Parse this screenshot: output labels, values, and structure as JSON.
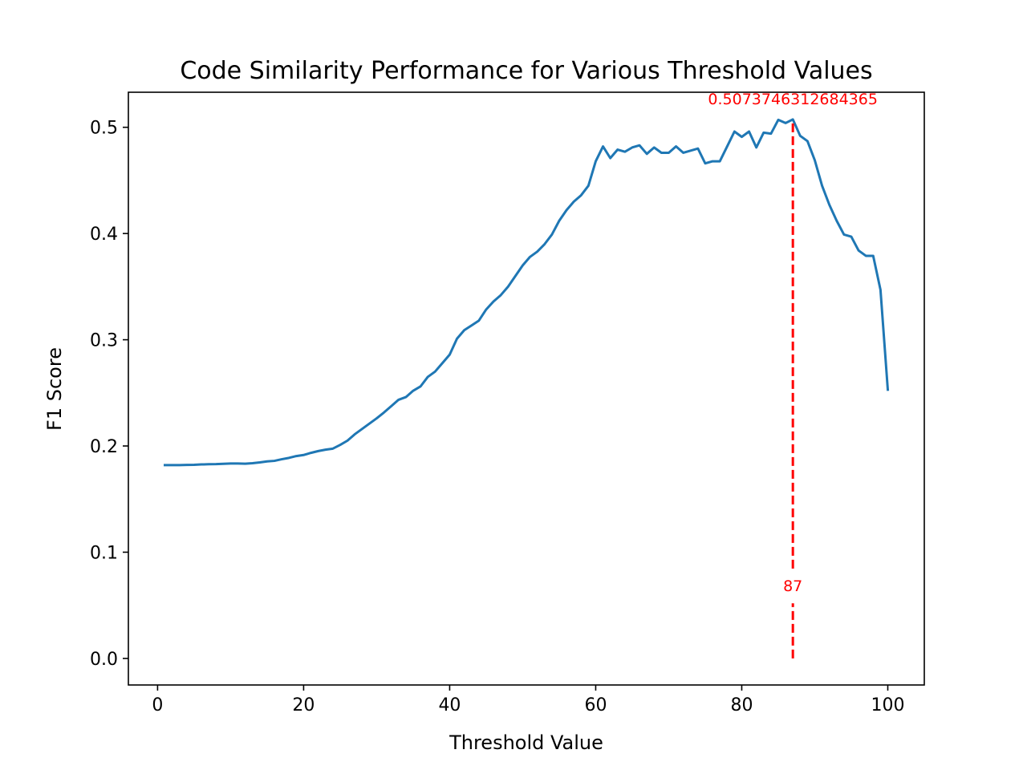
{
  "chart_data": {
    "type": "line",
    "title": "Code Similarity Performance for Various Threshold Values",
    "xlabel": "Threshold Value",
    "ylabel": "F1 Score",
    "xlim": [
      -4,
      105
    ],
    "ylim": [
      -0.025,
      0.533
    ],
    "xticks": [
      0,
      20,
      40,
      60,
      80,
      100
    ],
    "yticks": [
      0.0,
      0.1,
      0.2,
      0.3,
      0.4,
      0.5
    ],
    "xtick_labels": [
      "0",
      "20",
      "40",
      "60",
      "80",
      "100"
    ],
    "ytick_labels": [
      "0.0",
      "0.1",
      "0.2",
      "0.3",
      "0.4",
      "0.5"
    ],
    "grid": false,
    "series": [
      {
        "color": "#1f77b4",
        "x": [
          1,
          2,
          3,
          4,
          5,
          6,
          7,
          8,
          9,
          10,
          11,
          12,
          13,
          14,
          15,
          16,
          17,
          18,
          19,
          20,
          21,
          22,
          23,
          24,
          25,
          26,
          27,
          28,
          29,
          30,
          31,
          32,
          33,
          34,
          35,
          36,
          37,
          38,
          39,
          40,
          41,
          42,
          43,
          44,
          45,
          46,
          47,
          48,
          49,
          50,
          51,
          52,
          53,
          54,
          55,
          56,
          57,
          58,
          59,
          60,
          61,
          62,
          63,
          64,
          65,
          66,
          67,
          68,
          69,
          70,
          71,
          72,
          73,
          74,
          75,
          76,
          77,
          78,
          79,
          80,
          81,
          82,
          83,
          84,
          85,
          86,
          87,
          88,
          89,
          90,
          91,
          92,
          93,
          94,
          95,
          96,
          97,
          98,
          99,
          100
        ],
        "y": [
          0.182,
          0.182,
          0.182,
          0.1822,
          0.1823,
          0.1826,
          0.1828,
          0.1829,
          0.1832,
          0.1835,
          0.1835,
          0.1833,
          0.1838,
          0.1845,
          0.1855,
          0.186,
          0.1875,
          0.1888,
          0.1905,
          0.1915,
          0.1935,
          0.1952,
          0.1965,
          0.1975,
          0.201,
          0.205,
          0.211,
          0.216,
          0.221,
          0.226,
          0.2315,
          0.2375,
          0.2435,
          0.246,
          0.252,
          0.256,
          0.265,
          0.27,
          0.278,
          0.286,
          0.301,
          0.309,
          0.3135,
          0.318,
          0.3285,
          0.336,
          0.342,
          0.35,
          0.36,
          0.37,
          0.378,
          0.383,
          0.39,
          0.399,
          0.412,
          0.422,
          0.43,
          0.436,
          0.445,
          0.468,
          0.482,
          0.471,
          0.479,
          0.477,
          0.481,
          0.483,
          0.475,
          0.481,
          0.476,
          0.476,
          0.482,
          0.476,
          0.478,
          0.48,
          0.466,
          0.468,
          0.468,
          0.482,
          0.496,
          0.491,
          0.496,
          0.481,
          0.495,
          0.494,
          0.507,
          0.504,
          0.5074,
          0.492,
          0.487,
          0.469,
          0.445,
          0.427,
          0.412,
          0.399,
          0.397,
          0.384,
          0.379,
          0.379,
          0.347,
          0.253
        ]
      }
    ],
    "vline": {
      "x": 87,
      "y_from": 0.0,
      "y_to": 0.5073746312684365,
      "color": "#ff0000",
      "style": "dashed"
    },
    "annotations": [
      {
        "text": "0.5073746312684365",
        "x": 87,
        "y": 0.5073746312684365,
        "color": "#ff0000"
      },
      {
        "text": "87",
        "x": 87,
        "y": 0.07,
        "color": "#ff0000"
      }
    ]
  }
}
